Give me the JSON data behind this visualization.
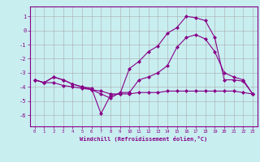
{
  "xlabel": "Windchill (Refroidissement éolien,°C)",
  "background_color": "#c8eef0",
  "line_color": "#880088",
  "grid_color": "#aaaaaa",
  "xlim": [
    -0.5,
    23.5
  ],
  "ylim": [
    -6.8,
    1.7
  ],
  "yticks": [
    1,
    0,
    -1,
    -2,
    -3,
    -4,
    -5,
    -6
  ],
  "xticks": [
    0,
    1,
    2,
    3,
    4,
    5,
    6,
    7,
    8,
    9,
    10,
    11,
    12,
    13,
    14,
    15,
    16,
    17,
    18,
    19,
    20,
    21,
    22,
    23
  ],
  "line1_x": [
    0,
    1,
    2,
    3,
    4,
    5,
    6,
    7,
    8,
    9,
    10,
    11,
    12,
    13,
    14,
    15,
    16,
    17,
    18,
    19,
    20,
    21,
    22,
    23
  ],
  "line1_y": [
    -3.5,
    -3.7,
    -3.3,
    -3.5,
    -3.8,
    -4.0,
    -4.1,
    -5.9,
    -4.6,
    -4.5,
    -2.7,
    -2.2,
    -1.5,
    -1.1,
    -0.2,
    0.2,
    1.0,
    0.9,
    0.7,
    -0.5,
    -3.5,
    -3.5,
    -3.6,
    -4.5
  ],
  "line2_x": [
    0,
    1,
    2,
    3,
    4,
    5,
    6,
    7,
    8,
    9,
    10,
    11,
    12,
    13,
    14,
    15,
    16,
    17,
    18,
    19,
    20,
    21,
    22,
    23
  ],
  "line2_y": [
    -3.5,
    -3.7,
    -3.3,
    -3.5,
    -3.8,
    -4.0,
    -4.2,
    -4.5,
    -4.8,
    -4.4,
    -4.4,
    -3.5,
    -3.3,
    -3.0,
    -2.5,
    -1.2,
    -0.5,
    -0.3,
    -0.6,
    -1.5,
    -3.0,
    -3.3,
    -3.5,
    -4.5
  ],
  "line3_x": [
    0,
    1,
    2,
    3,
    4,
    5,
    6,
    7,
    8,
    9,
    10,
    11,
    12,
    13,
    14,
    15,
    16,
    17,
    18,
    19,
    20,
    21,
    22,
    23
  ],
  "line3_y": [
    -3.5,
    -3.7,
    -3.7,
    -3.9,
    -4.0,
    -4.1,
    -4.2,
    -4.3,
    -4.5,
    -4.5,
    -4.5,
    -4.4,
    -4.4,
    -4.4,
    -4.3,
    -4.3,
    -4.3,
    -4.3,
    -4.3,
    -4.3,
    -4.3,
    -4.3,
    -4.4,
    -4.5
  ]
}
